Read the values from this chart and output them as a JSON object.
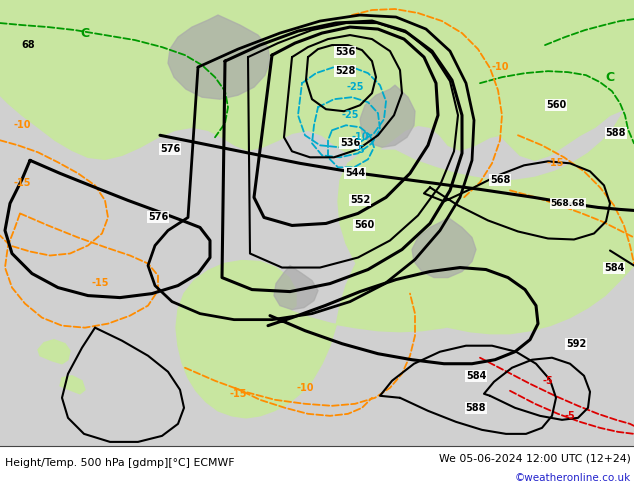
{
  "title_left": "Height/Temp. 500 hPa [gdmp][°C] ECMWF",
  "title_right": "We 05-06-2024 12:00 UTC (12+24)",
  "credit": "©weatheronline.co.uk",
  "bg_color": "#d8d8d8",
  "land_green": "#c8e6a0",
  "terrain_gray": "#aaaaaa",
  "height_color": "#000000",
  "temp_orange": "#ff8c00",
  "temp_green": "#009900",
  "temp_red": "#dd0000",
  "temp_cyan": "#00aacc",
  "figsize": [
    6.34,
    4.9
  ],
  "dpi": 100
}
